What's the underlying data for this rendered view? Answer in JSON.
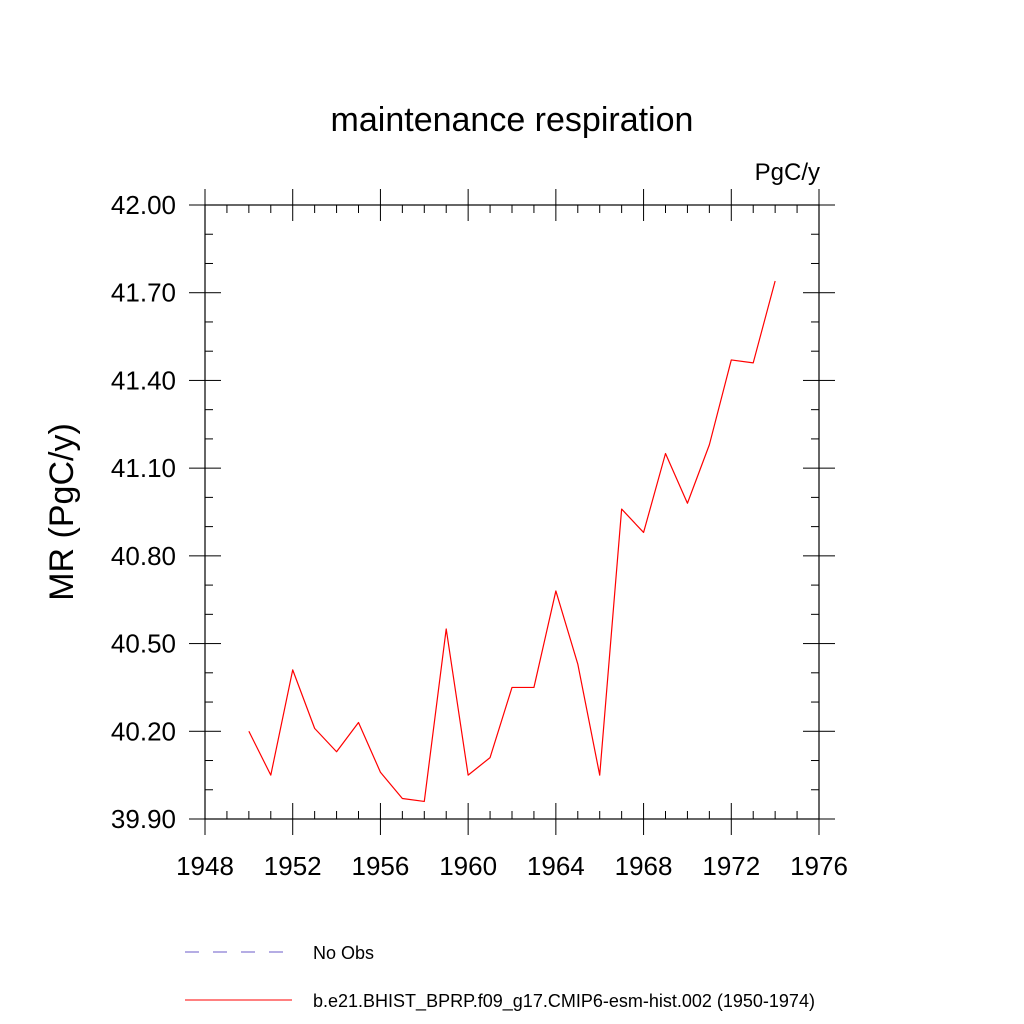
{
  "chart_data": {
    "type": "line",
    "title": "maintenance respiration",
    "units_label": "PgC/y",
    "xlabel": "",
    "ylabel": "MR  (PgC/y)",
    "xlim": [
      1948,
      1976
    ],
    "ylim": [
      39.9,
      42.0
    ],
    "x_ticks": [
      1948,
      1952,
      1956,
      1960,
      1964,
      1968,
      1972,
      1976
    ],
    "x_tick_labels": [
      "1948",
      "1952",
      "1956",
      "1960",
      "1964",
      "1968",
      "1972",
      "1976"
    ],
    "y_ticks": [
      39.9,
      40.2,
      40.5,
      40.8,
      41.1,
      41.4,
      41.7,
      42.0
    ],
    "y_tick_labels": [
      "39.90",
      "40.20",
      "40.50",
      "40.80",
      "41.10",
      "41.40",
      "41.70",
      "42.00"
    ],
    "x_minor_step": 1,
    "y_minor_step": 0.1,
    "grid": false,
    "legend_position": "bottom",
    "series": [
      {
        "name": "b.e21.BHIST_BPRP.f09_g17.CMIP6-esm-hist.002 (1950-1974)",
        "color": "#ff0000",
        "style": "solid",
        "x": [
          1950,
          1951,
          1952,
          1953,
          1954,
          1955,
          1956,
          1957,
          1958,
          1959,
          1960,
          1961,
          1962,
          1963,
          1964,
          1965,
          1966,
          1967,
          1968,
          1969,
          1970,
          1971,
          1972,
          1973,
          1974
        ],
        "values": [
          40.2,
          40.05,
          40.41,
          40.21,
          40.13,
          40.23,
          40.06,
          39.97,
          39.96,
          40.55,
          40.05,
          40.11,
          40.35,
          40.35,
          40.68,
          40.43,
          40.05,
          40.96,
          40.88,
          41.15,
          40.98,
          41.18,
          41.47,
          41.46,
          41.74
        ]
      }
    ],
    "legend": [
      {
        "label": "No Obs",
        "color": "#6b5bc8",
        "style": "dashed"
      },
      {
        "label": "b.e21.BHIST_BPRP.f09_g17.CMIP6-esm-hist.002 (1950-1974)",
        "color": "#ff0000",
        "style": "solid"
      }
    ]
  }
}
